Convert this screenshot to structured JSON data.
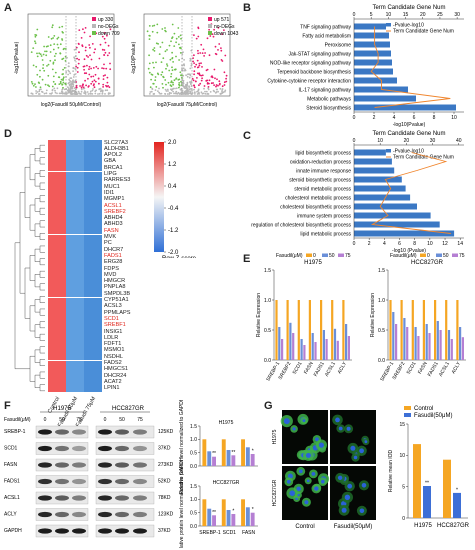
{
  "panels": {
    "A": {
      "letter": "A",
      "left": {
        "xlabel": "log2(Fasudil 50μM/Control)",
        "ylabel": "-log10(Pvalue)",
        "legend": [
          {
            "label": "up 330",
            "color": "#e8196b"
          },
          {
            "label": "no-DEGs",
            "color": "#b7b7b7"
          },
          {
            "label": "down 709",
            "color": "#6cc04a"
          }
        ]
      },
      "right": {
        "xlabel": "log2(Fasudil 75μM/Control)",
        "ylabel": "-log10(Pvalue)",
        "legend": [
          {
            "label": "up 571",
            "color": "#e8196b"
          },
          {
            "label": "no-DEGs",
            "color": "#b7b7b7"
          },
          {
            "label": "down 1043",
            "color": "#6cc04a"
          }
        ]
      }
    },
    "B": {
      "letter": "B",
      "title": "Term Candidate Gene Num",
      "legend": [
        "-Pvalue-log10",
        "Term Candidate Gene Num"
      ],
      "xlabel": "-log10(Pvalue)",
      "categories": [
        "TNF signaling pathway",
        "Fatty acid metabolism",
        "Peroxisome",
        "Jak-STAT signaling pathway",
        "NOD-like receptor signaling pathway",
        "Terpenoid backbone biosynthesis",
        "Cytokine-cytokine receptor interaction",
        "IL-17 signaling pathway",
        "Metabolic pathways",
        "Steroid biosynthesis"
      ],
      "values": [
        3.2,
        3.5,
        3.6,
        3.7,
        3.8,
        3.9,
        4.3,
        5.4,
        6.2,
        10.2
      ],
      "line": [
        6,
        6,
        6,
        7,
        7,
        5,
        8,
        8,
        28,
        6
      ],
      "xticks": [
        0,
        2,
        4,
        6,
        8,
        10
      ],
      "topticks": [
        0,
        5,
        10,
        15,
        20,
        25,
        30
      ],
      "xlim": [
        0,
        11
      ],
      "toplim": [
        0,
        32
      ]
    },
    "C": {
      "letter": "C",
      "title": "Term Candidate Gene Num",
      "legend": [
        "-Pvalue-log10",
        "Term Candidate Gene Num"
      ],
      "xlabel": "-log10 (Pvalue)",
      "categories": [
        "lipid biosynthetic process",
        "oxidation-reduction process",
        "innate immune response",
        "steroid biosynthetic process",
        "steroid metabolic process",
        "cholesterol metabolic process",
        "cholesterol biosynthetic process",
        "immune system process",
        "regulation of cholesterol biosynthetic process",
        "lipid metabolic process"
      ],
      "values": [
        4.2,
        5.0,
        5.3,
        6.3,
        6.8,
        7.4,
        8.3,
        10.1,
        11.3,
        13.2
      ],
      "line": [
        22,
        35,
        24,
        12,
        14,
        12,
        10,
        13,
        7,
        37
      ],
      "xticks": [
        0,
        2,
        4,
        6,
        8,
        10,
        12,
        14
      ],
      "topticks": [
        0,
        10,
        20,
        30,
        40
      ],
      "xlim": [
        0,
        14.5
      ],
      "toplim": [
        0,
        42
      ]
    },
    "D": {
      "letter": "D",
      "colorbar_ticks": [
        "2.0",
        "1.2",
        "0.4",
        "-0.4",
        "-1.2",
        "-2.0"
      ],
      "colorbar_label": "Row Z-score",
      "columns": [
        "Control",
        "Fasudil 50μM",
        "Fasudil 75μM"
      ],
      "genes": [
        "SLC27A3",
        "ALDH3B1",
        "APOL2",
        "GBA",
        "BRCA1",
        "LIPG",
        "RARRES3",
        "MUC1",
        "IDI1",
        "MGMP1",
        "ACSL1",
        "SREBF2",
        "ABHD4",
        "ABHD3",
        "FASN",
        "MVK",
        "PC",
        "DHCR7",
        "FADS1",
        "ERG28",
        "FDPS",
        "MVD",
        "HMGCR",
        "PNPLA8",
        "SMPDL3B",
        "CYP51A1",
        "ACSL3",
        "PPMLAPS",
        "SCD1",
        "SREBF1",
        "INSIG1",
        "LDLR",
        "FDFT1",
        "MSMO1",
        "NSDHL",
        "FADS2",
        "HMGCS1",
        "DHCR24",
        "ACAT2",
        "LPIN1"
      ],
      "highlighted": [
        "ACSL1",
        "SREBF2",
        "FASN",
        "FADS1",
        "SCD1",
        "SREBF1"
      ]
    },
    "E": {
      "letter": "E",
      "ylabel": "Relative Expression",
      "dose_label": "Fasudil(μM)",
      "doses": [
        "0",
        "50",
        "75"
      ],
      "colors": [
        "#f5a623",
        "#6a8fd8",
        "#b57fd3"
      ],
      "genes": [
        "SREBP-1",
        "SREBF2",
        "SCD1",
        "FASN",
        "FADS1",
        "ACSL1",
        "ACLY"
      ],
      "h1975": {
        "title": "H1975",
        "ylim": [
          0,
          1.5
        ],
        "yticks": [
          "0.0",
          "0.5",
          "1.0",
          "1.5"
        ],
        "series": [
          {
            "name": "0",
            "values": [
              1,
              1,
              1,
              1,
              1,
              1,
              1
            ]
          },
          {
            "name": "50",
            "values": [
              0.55,
              0.62,
              0.35,
              0.45,
              0.5,
              0.52,
              0.6
            ]
          },
          {
            "name": "75",
            "values": [
              0.35,
              0.45,
              0.25,
              0.3,
              0.35,
              0.32,
              0.4
            ]
          }
        ]
      },
      "hcc827gr": {
        "title": "HCC827GR",
        "ylim": [
          0,
          1.5
        ],
        "yticks": [
          "0.0",
          "0.5",
          "1.0",
          "1.5"
        ],
        "series": [
          {
            "name": "0",
            "values": [
              1,
              1,
              1,
              1,
              1,
              1,
              1
            ]
          },
          {
            "name": "50",
            "values": [
              0.8,
              0.7,
              0.55,
              0.6,
              0.65,
              0.5,
              0.55
            ]
          },
          {
            "name": "75",
            "values": [
              0.6,
              0.55,
              0.4,
              0.45,
              0.5,
              0.35,
              0.38
            ]
          }
        ]
      }
    },
    "F": {
      "letter": "F",
      "cell_lines": [
        "H1975",
        "HCC827GR"
      ],
      "dose_label": "Fasudil(μM)",
      "doses": [
        "0",
        "50",
        "75",
        "0",
        "50",
        "75"
      ],
      "proteins": [
        {
          "name": "SREBP-1",
          "kda": "125KD"
        },
        {
          "name": "SCD1",
          "kda": "37KD"
        },
        {
          "name": "FASN",
          "kda": "273KD"
        },
        {
          "name": "FADS1",
          "kda": "52KD"
        },
        {
          "name": "ACSL1",
          "kda": "78KD"
        },
        {
          "name": "ACLY",
          "kda": "123KD"
        },
        {
          "name": "GAPDH",
          "kda": "37KD"
        }
      ],
      "band_intensity": [
        [
          0.95,
          0.6,
          0.45,
          0.95,
          0.65,
          0.5
        ],
        [
          0.95,
          0.55,
          0.35,
          0.95,
          0.6,
          0.4
        ],
        [
          0.9,
          0.6,
          0.5,
          0.9,
          0.65,
          0.55
        ],
        [
          0.85,
          0.55,
          0.4,
          0.85,
          0.6,
          0.45
        ],
        [
          0.9,
          0.65,
          0.5,
          0.9,
          0.6,
          0.5
        ],
        [
          0.9,
          0.6,
          0.45,
          0.9,
          0.6,
          0.5
        ],
        [
          0.95,
          0.95,
          0.95,
          0.95,
          0.95,
          0.95
        ]
      ],
      "bars_top": {
        "title": "H1975",
        "ylabel": "Relative protein level normalized to GAPDH",
        "categories": [
          "SREBP-1",
          "SCD1",
          "FASN"
        ],
        "series": [
          {
            "name": "0",
            "values": [
              1.0,
              1.0,
              1.0
            ]
          },
          {
            "name": "50",
            "values": [
              0.55,
              0.6,
              0.7
            ]
          },
          {
            "name": "75",
            "values": [
              0.35,
              0.4,
              0.45
            ]
          }
        ],
        "sig": [
          "**",
          "**",
          "*"
        ],
        "ylim": [
          0,
          1.5
        ],
        "yticks": [
          "0.0",
          "0.5",
          "1.0",
          "1.5"
        ]
      },
      "bars_bottom": {
        "title": "HCC827GR",
        "ylabel": "Relative protein level normalized to GAPDH",
        "categories": [
          "SREBP-1",
          "SCD1",
          "FASN"
        ],
        "series": [
          {
            "name": "0",
            "values": [
              1.0,
              1.0,
              1.0
            ]
          },
          {
            "name": "50",
            "values": [
              0.65,
              0.6,
              0.7
            ]
          },
          {
            "name": "75",
            "values": [
              0.4,
              0.45,
              0.5
            ]
          }
        ],
        "sig": [
          "**",
          "*",
          "*"
        ],
        "ylim": [
          0,
          1.5
        ],
        "yticks": [
          "0.0",
          "0.5",
          "1.0",
          "1.5"
        ]
      },
      "xlabels": [
        "SREBP-1",
        "SCD1",
        "FASN"
      ]
    },
    "G": {
      "letter": "G",
      "row_labels": [
        "H1975",
        "HCC827GR"
      ],
      "col_labels": [
        "Control",
        "Fasudil(50μM)"
      ],
      "chart": {
        "ylabel": "Relative mean IOD",
        "legend": [
          "Control",
          "Fasudil(50μM)"
        ],
        "colors": [
          "#f5a623",
          "#3d6fd6"
        ],
        "categories": [
          "H1975",
          "HCC827GR"
        ],
        "series": [
          {
            "name": "Control",
            "values": [
              11.8,
              9.3
            ]
          },
          {
            "name": "Fasudil(50μM)",
            "values": [
              5.1,
              4.0
            ]
          }
        ],
        "sig": [
          "**",
          "*"
        ],
        "ylim": [
          0,
          15
        ],
        "yticks": [
          "0",
          "5",
          "10",
          "15"
        ]
      }
    }
  }
}
